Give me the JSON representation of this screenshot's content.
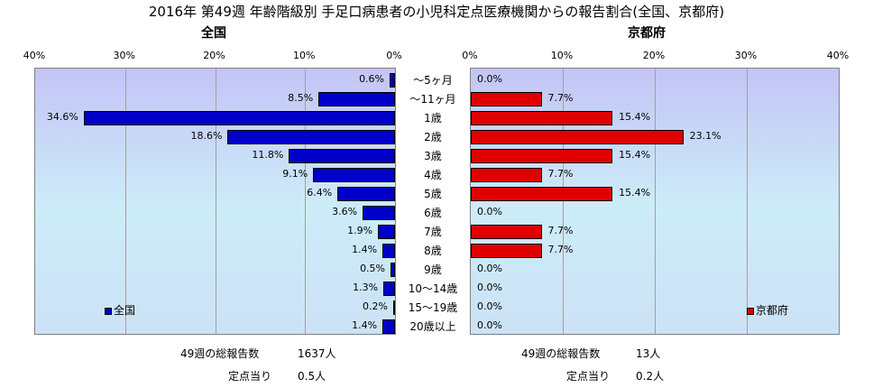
{
  "title": "2016年 第49週 年齢階級別 手足口病患者の小児科定点医療機関からの報告割合(全国、京都府)",
  "colors": {
    "national": "#0000c8",
    "kyoto": "#e00000",
    "plot_top": "#c4c4f6",
    "plot_mid": "#ccecf8"
  },
  "chart_data": [
    {
      "type": "bar",
      "orientation": "horizontal",
      "title": "全国",
      "legend": "全国",
      "legend_position": "bottom-left",
      "x_direction": "reversed",
      "xlim": [
        0,
        40
      ],
      "x_ticks": [
        "40%",
        "30%",
        "20%",
        "10%",
        "0%"
      ],
      "grid": true,
      "categories": [
        "～5ヶ月",
        "～11ヶ月",
        "1歳",
        "2歳",
        "3歳",
        "4歳",
        "5歳",
        "6歳",
        "7歳",
        "8歳",
        "9歳",
        "10～14歳",
        "15～19歳",
        "20歳以上"
      ],
      "values": [
        0.6,
        8.5,
        34.6,
        18.6,
        11.8,
        9.1,
        6.4,
        3.6,
        1.9,
        1.4,
        0.5,
        1.3,
        0.2,
        1.4
      ],
      "labels": [
        "0.6%",
        "8.5%",
        "34.6%",
        "18.6%",
        "11.8%",
        "9.1%",
        "6.4%",
        "3.6%",
        "1.9%",
        "1.4%",
        "0.5%",
        "1.3%",
        "0.2%",
        "1.4%"
      ]
    },
    {
      "type": "bar",
      "orientation": "horizontal",
      "title": "京都府",
      "legend": "京都府",
      "legend_position": "bottom-right",
      "xlim": [
        0,
        40
      ],
      "x_ticks": [
        "0%",
        "10%",
        "20%",
        "30%",
        "40%"
      ],
      "grid": true,
      "categories": [
        "～5ヶ月",
        "～11ヶ月",
        "1歳",
        "2歳",
        "3歳",
        "4歳",
        "5歳",
        "6歳",
        "7歳",
        "8歳",
        "9歳",
        "10～14歳",
        "15～19歳",
        "20歳以上"
      ],
      "values": [
        0.0,
        7.7,
        15.4,
        23.1,
        15.4,
        7.7,
        15.4,
        0.0,
        7.7,
        7.7,
        0.0,
        0.0,
        0.0,
        0.0
      ],
      "labels": [
        "0.0%",
        "7.7%",
        "15.4%",
        "23.1%",
        "15.4%",
        "7.7%",
        "15.4%",
        "0.0%",
        "7.7%",
        "7.7%",
        "0.0%",
        "0.0%",
        "0.0%",
        "0.0%"
      ]
    }
  ],
  "footer": {
    "national": {
      "total_label": "49週の総報告数",
      "total_value": "1637人",
      "per_label": "定点当り",
      "per_value": "0.5人"
    },
    "kyoto": {
      "total_label": "49週の総報告数",
      "total_value": "13人",
      "per_label": "定点当り",
      "per_value": "0.2人"
    }
  }
}
